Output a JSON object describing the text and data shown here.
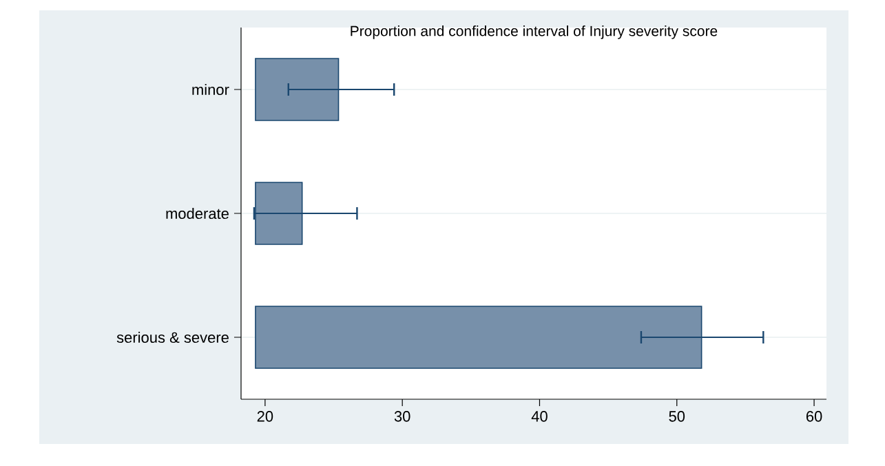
{
  "chart_data": {
    "type": "bar",
    "orientation": "horizontal",
    "title": "Proportion and confidence interval of Injury severity score",
    "categories": [
      "minor",
      "moderate",
      "serious & severe"
    ],
    "base": [
      19.3,
      19.3,
      19.3
    ],
    "values": [
      6.05,
      3.4,
      32.5
    ],
    "errors": [
      [
        21.7,
        29.4
      ],
      [
        19.2,
        26.7
      ],
      [
        47.4,
        56.3
      ]
    ],
    "color": "#7790aa",
    "xlim": [
      18.25,
      60.9
    ],
    "xticks": [
      20,
      30,
      40,
      50,
      60
    ],
    "grid": "y"
  }
}
